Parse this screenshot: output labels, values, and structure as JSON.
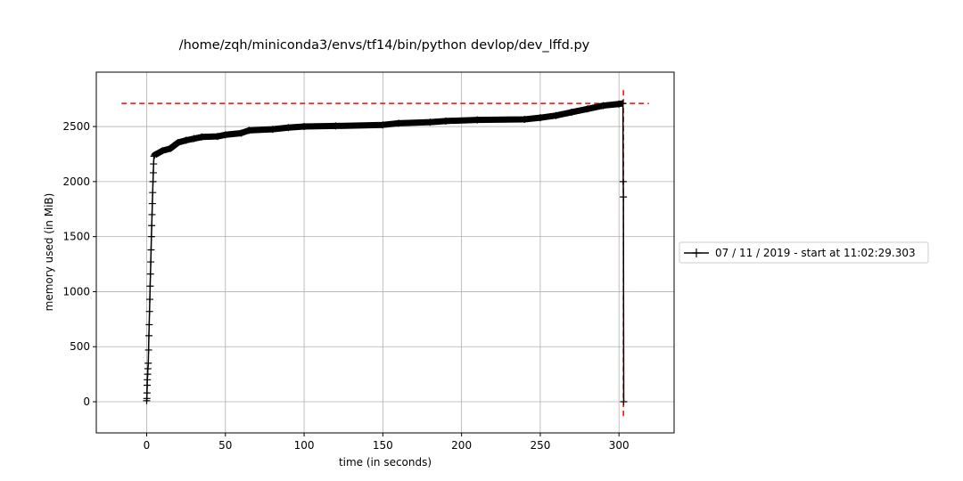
{
  "chart_data": {
    "type": "line",
    "title": "/home/zqh/miniconda3/envs/tf14/bin/python devlop/dev_lffd.py",
    "xlabel": "time (in seconds)",
    "ylabel": "memory used (in MiB)",
    "xlim": [
      -32,
      335
    ],
    "ylim": [
      -283,
      2994
    ],
    "xticks": [
      0,
      50,
      100,
      150,
      200,
      250,
      300
    ],
    "yticks": [
      0,
      500,
      1000,
      1500,
      2000,
      2500
    ],
    "grid": true,
    "legend_placement": "outside-right",
    "series": [
      {
        "name": "07 / 11 / 2019 - start at 11:02:29.303",
        "color": "#000000",
        "marker": "+",
        "x": [
          0,
          0.1,
          0.2,
          0.3,
          0.4,
          0.6,
          0.8,
          1.0,
          1.2,
          1.4,
          1.6,
          1.8,
          2.0,
          2.2,
          2.4,
          2.6,
          2.8,
          3.0,
          3.2,
          3.4,
          3.6,
          3.8,
          4.0,
          4.2,
          4.4,
          4.6,
          5,
          10,
          15,
          20,
          25,
          30,
          35,
          45,
          50,
          60,
          65,
          80,
          90,
          100,
          120,
          150,
          160,
          180,
          190,
          210,
          240,
          250,
          260,
          270,
          280,
          290,
          300,
          302.5,
          302.7,
          302.8,
          303
        ],
        "y": [
          10,
          30,
          80,
          150,
          200,
          250,
          300,
          350,
          470,
          600,
          700,
          820,
          930,
          1050,
          1160,
          1270,
          1380,
          1500,
          1600,
          1700,
          1800,
          1900,
          2000,
          2080,
          2160,
          2230,
          2240,
          2280,
          2300,
          2355,
          2375,
          2390,
          2405,
          2410,
          2425,
          2440,
          2465,
          2475,
          2490,
          2500,
          2505,
          2515,
          2530,
          2540,
          2550,
          2560,
          2565,
          2580,
          2600,
          2630,
          2660,
          2690,
          2705,
          2710,
          2000,
          1860,
          0
        ]
      }
    ],
    "reference_lines": [
      {
        "orientation": "horizontal",
        "value": 2710,
        "from": -16,
        "to": 319,
        "color": "#ff0000",
        "style": "dashed"
      },
      {
        "orientation": "vertical",
        "value": 302.8,
        "from": -130,
        "to": 2848,
        "color": "#ff0000",
        "style": "dashed"
      }
    ]
  }
}
